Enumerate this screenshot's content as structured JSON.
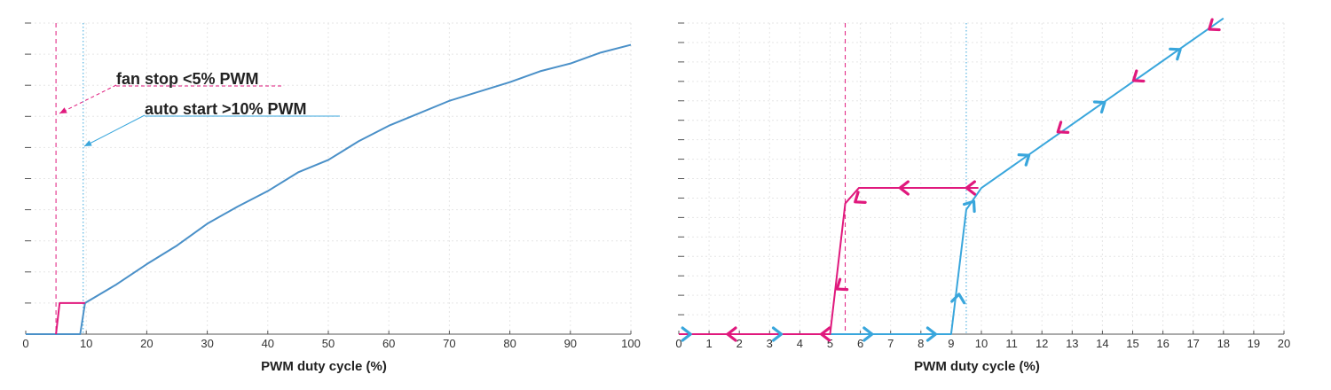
{
  "colors": {
    "blue": "#4a90c8",
    "cyan": "#39a6dc",
    "magenta": "#e0197d"
  },
  "chart_data": [
    {
      "type": "line",
      "xlabel": "PWM duty cycle (%)",
      "xlim": [
        0,
        100
      ],
      "ylim": [
        0,
        10
      ],
      "x_ticks": [
        0,
        10,
        20,
        30,
        40,
        50,
        60,
        70,
        80,
        90,
        100
      ],
      "y_tick_count": 10,
      "grid": true,
      "thresholds": [
        {
          "x": 5,
          "style": "dashed",
          "color": "#e0197d"
        },
        {
          "x": 9.5,
          "style": "dotted",
          "color": "#39a6dc"
        }
      ],
      "series": [
        {
          "color": "#4a90c8",
          "points": [
            [
              0,
              0
            ],
            [
              9,
              0
            ],
            [
              9.8,
              1
            ],
            [
              15,
              1.6
            ],
            [
              20,
              2.25
            ],
            [
              25,
              2.85
            ],
            [
              30,
              3.55
            ],
            [
              35,
              4.1
            ],
            [
              40,
              4.6
            ],
            [
              45,
              5.2
            ],
            [
              50,
              5.6
            ],
            [
              55,
              6.2
            ],
            [
              60,
              6.7
            ],
            [
              65,
              7.1
            ],
            [
              70,
              7.5
            ],
            [
              75,
              7.8
            ],
            [
              80,
              8.1
            ],
            [
              85,
              8.45
            ],
            [
              90,
              8.7
            ],
            [
              95,
              9.05
            ],
            [
              100,
              9.3
            ]
          ]
        },
        {
          "color": "#e0197d",
          "points": [
            [
              5,
              0
            ],
            [
              5.6,
              1
            ],
            [
              9.8,
              1
            ]
          ]
        }
      ],
      "annotations": [
        {
          "text": "fan stop <5% PWM",
          "color": "#e0197d",
          "target": [
            5,
            7.1
          ]
        },
        {
          "text": "auto start >10% PWM",
          "color": "#39a6dc",
          "target": [
            9.5,
            6.1
          ]
        }
      ]
    },
    {
      "type": "line",
      "xlabel": "PWM duty cycle (%)",
      "xlim": [
        0,
        20
      ],
      "ylim": [
        0,
        10
      ],
      "x_ticks": [
        0,
        1,
        2,
        3,
        4,
        5,
        6,
        7,
        8,
        9,
        10,
        11,
        12,
        13,
        14,
        15,
        16,
        17,
        18,
        19,
        20
      ],
      "y_tick_count": 16,
      "grid": true,
      "thresholds": [
        {
          "x": 5.5,
          "style": "dashed",
          "color": "#e0197d"
        },
        {
          "x": 9.5,
          "style": "dotted",
          "color": "#39a6dc"
        }
      ],
      "series": [
        {
          "color": "#39a6dc",
          "direction": "increasing",
          "points": [
            [
              0,
              0
            ],
            [
              9,
              0
            ],
            [
              9.5,
              4
            ],
            [
              10,
              4.7
            ],
            [
              18,
              10.15
            ]
          ],
          "arrows": [
            [
              0.3,
              0
            ],
            [
              3.3,
              0
            ],
            [
              6.3,
              0
            ],
            [
              8.4,
              0
            ],
            [
              9.25,
              1.2
            ],
            [
              9.7,
              4.2
            ],
            [
              11.5,
              5.7
            ],
            [
              14,
              7.4
            ],
            [
              16.5,
              9.1
            ]
          ]
        },
        {
          "color": "#e0197d",
          "direction": "decreasing",
          "points": [
            [
              9.9,
              4.7
            ],
            [
              5.95,
              4.7
            ],
            [
              5.5,
              4.2
            ],
            [
              5,
              0
            ],
            [
              0,
              0
            ]
          ],
          "arrows": [
            [
              9.6,
              4.7
            ],
            [
              7.4,
              4.7
            ],
            [
              5.9,
              4.3
            ],
            [
              5.3,
              1.5
            ],
            [
              4.8,
              0
            ],
            [
              1.7,
              0
            ],
            [
              12.6,
              6.55
            ],
            [
              15.1,
              8.2
            ],
            [
              17.6,
              9.85
            ]
          ]
        }
      ]
    }
  ]
}
